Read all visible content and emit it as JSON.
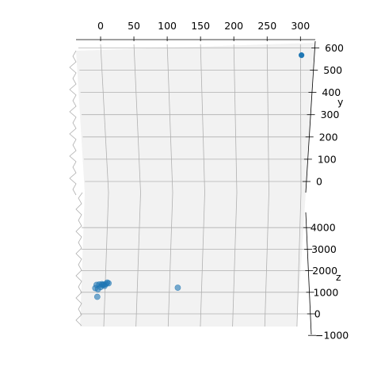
{
  "chart_data": {
    "type": "scatter",
    "projection": "3d",
    "title": "",
    "xlabel": "",
    "ylabel": "y",
    "zlabel": "z",
    "x_ticks": [
      "0",
      "50",
      "100",
      "150",
      "200",
      "250",
      "300"
    ],
    "y_ticks": [
      "600",
      "500",
      "400",
      "300",
      "200",
      "100",
      "0"
    ],
    "z_ticks": [
      "4000",
      "3000",
      "2000",
      "1000",
      "0",
      "−1000"
    ],
    "xlim": [
      -35,
      320
    ],
    "ylim": [
      -60,
      620
    ],
    "zlim": [
      -1100,
      4800
    ],
    "grid": true,
    "marker_color": "#1f77b4",
    "points_top_panel": [
      {
        "x": 298,
        "y": 560,
        "z": 4800
      }
    ],
    "points_bottom_panel": [
      {
        "x": -6,
        "y": 20,
        "z": 1300
      },
      {
        "x": -2,
        "y": 25,
        "z": 1320
      },
      {
        "x": 2,
        "y": 30,
        "z": 1330
      },
      {
        "x": 5,
        "y": 28,
        "z": 1310
      },
      {
        "x": 8,
        "y": 32,
        "z": 1340
      },
      {
        "x": 10,
        "y": 35,
        "z": 1400
      },
      {
        "x": 12,
        "y": 30,
        "z": 1370
      },
      {
        "x": 6,
        "y": 22,
        "z": 1250
      },
      {
        "x": 0,
        "y": 18,
        "z": 1200
      },
      {
        "x": -8,
        "y": 15,
        "z": 1150
      },
      {
        "x": -4,
        "y": 12,
        "z": 1100
      },
      {
        "x": -5,
        "y": 10,
        "z": 750
      },
      {
        "x": 3,
        "y": 26,
        "z": 1290
      },
      {
        "x": 116,
        "y": 40,
        "z": 1160
      }
    ]
  }
}
